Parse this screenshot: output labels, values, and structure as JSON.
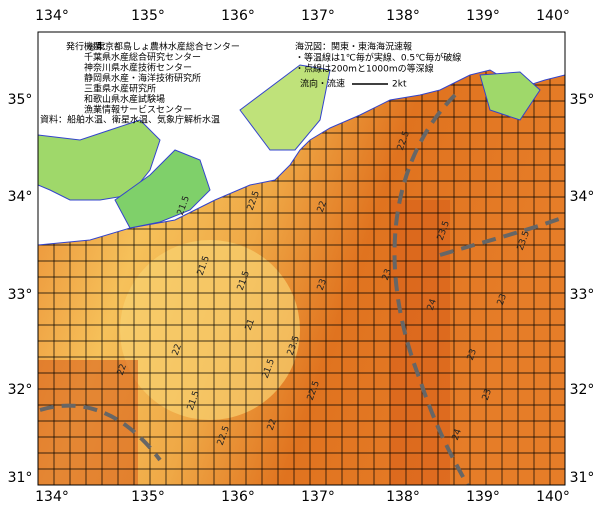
{
  "map": {
    "lon_labels": [
      "134°",
      "135°",
      "136°",
      "137°",
      "138°",
      "139°",
      "140°"
    ],
    "lat_labels": [
      "35°",
      "34°",
      "33°",
      "32°",
      "31°"
    ],
    "publisher_label": "発行機関：",
    "publishers": [
      "◎東京都島しょ農林水産総合センター",
      "千葉県水産総合研究センター",
      "神奈川県水産技術センター",
      "静岡県水産・海洋技術研究所",
      "三重県水産研究所",
      "和歌山県水産試験場",
      "漁業情報サービスセンター"
    ],
    "source": "資料：船舶水温、衛星水温、気象庁解析水温",
    "notes": [
      "海況図：関東・東海海況速報",
      "・等温線は1℃毎が実線、0.5℃毎が破線",
      "・点線は200mと1000mの等深線"
    ],
    "current_legend": "流向・流速",
    "current_scale": "2kt",
    "isotherm_labels": [
      "22.5",
      "22.5",
      "22",
      "21.5",
      "21.5",
      "21.5",
      "21",
      "21.5",
      "21.5",
      "22",
      "22.5",
      "23",
      "23.5",
      "23",
      "23.5",
      "24",
      "23",
      "23.5",
      "24",
      "22.5",
      "23",
      "23",
      "22",
      "22"
    ]
  }
}
